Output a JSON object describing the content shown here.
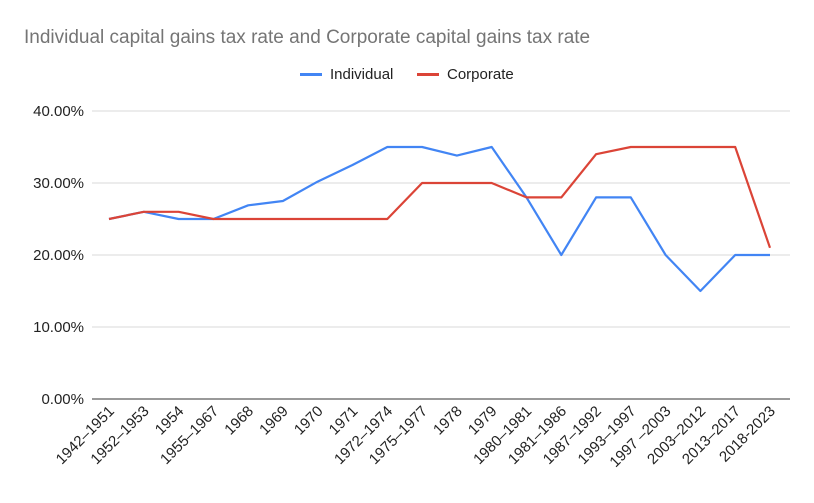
{
  "chart_data": {
    "type": "line",
    "title": "Individual capital gains tax rate and Corporate capital gains tax rate",
    "xlabel": "",
    "ylabel": "",
    "categories": [
      "1942–1951",
      "1952–1953",
      "1954",
      "1955–1967",
      "1968",
      "1969",
      "1970",
      "1971",
      "1972–1974",
      "1975–1977",
      "1978",
      "1979",
      "1980–1981",
      "1981–1986",
      "1987–1992",
      "1993–1997",
      "1997 –2003",
      "2003–2012",
      "2013–2017",
      "2018-2023"
    ],
    "series": [
      {
        "name": "Individual",
        "color": "#4285f4",
        "values": [
          25,
          26,
          25,
          25,
          26.9,
          27.5,
          30.2,
          32.5,
          35,
          35,
          33.8,
          35,
          28,
          20,
          28,
          28,
          20,
          15,
          20,
          20
        ]
      },
      {
        "name": "Corporate",
        "color": "#db4437",
        "values": [
          25,
          26,
          26,
          25,
          25,
          25,
          25,
          25,
          25,
          30,
          30,
          30,
          28,
          28,
          34,
          35,
          35,
          35,
          35,
          21
        ]
      }
    ],
    "ylim": [
      0,
      40
    ],
    "yticks": [
      "0.00%",
      "10.00%",
      "20.00%",
      "30.00%",
      "40.00%"
    ],
    "grid": true,
    "legend": "top"
  }
}
